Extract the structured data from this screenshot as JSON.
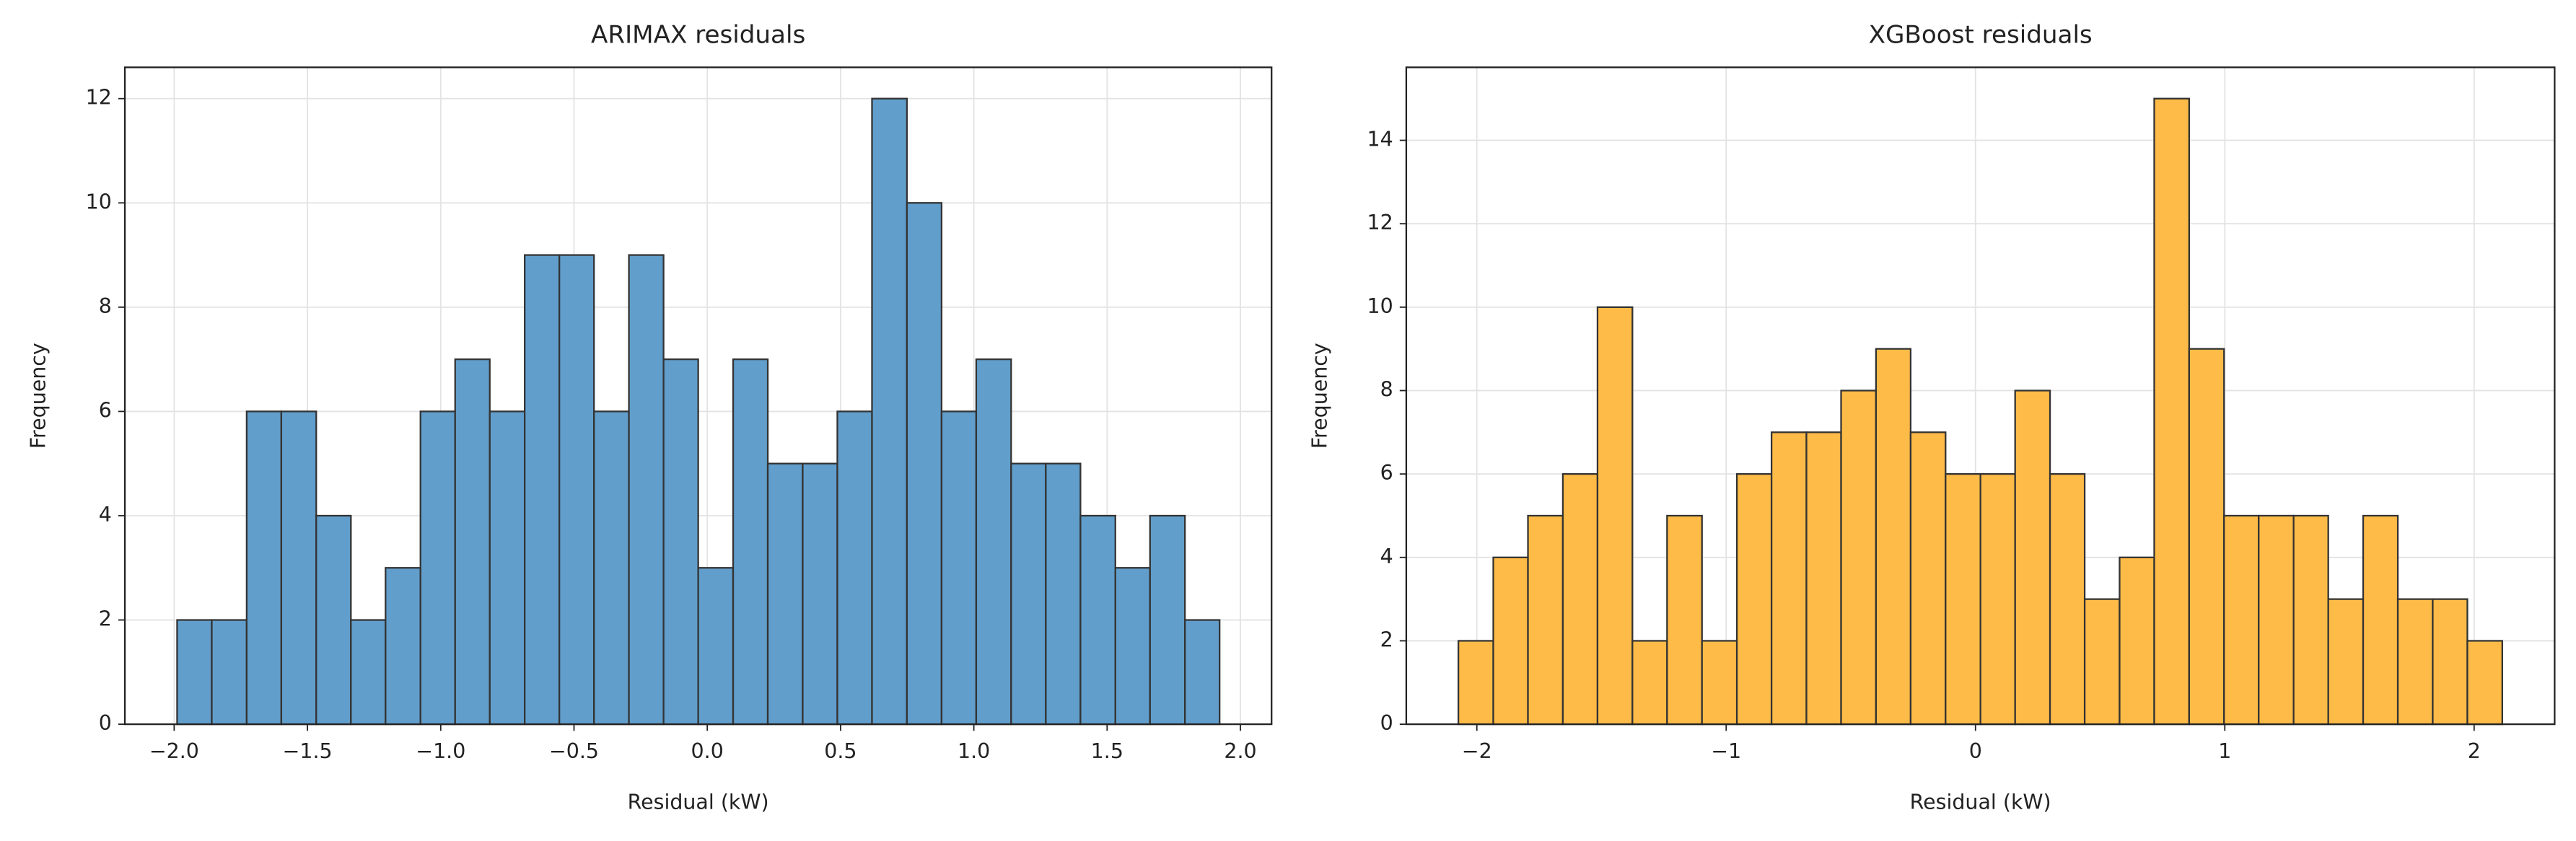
{
  "chart_data": [
    {
      "type": "histogram",
      "title": "ARIMAX residuals",
      "x_label": "Residual (kW)",
      "y_label": "Frequency",
      "color": "#619ecb",
      "edgecolor": "#333333",
      "grid": true,
      "bins": [
        -1.989,
        -1.859,
        -1.728,
        -1.598,
        -1.467,
        -1.337,
        -1.207,
        -1.076,
        -0.946,
        -0.816,
        -0.685,
        -0.555,
        -0.425,
        -0.294,
        -0.164,
        -0.034,
        0.097,
        0.227,
        0.358,
        0.488,
        0.618,
        0.749,
        0.879,
        1.009,
        1.14,
        1.27,
        1.4,
        1.531,
        1.661,
        1.792,
        1.922
      ],
      "values": [
        2,
        2,
        6,
        6,
        4,
        2,
        3,
        6,
        7,
        6,
        9,
        9,
        6,
        9,
        7,
        3,
        7,
        5,
        5,
        6,
        12,
        10,
        6,
        7,
        5,
        5,
        4,
        3,
        4,
        2
      ],
      "xlim": [
        -2.185,
        2.117
      ],
      "ylim": [
        0,
        12.6
      ],
      "xticks": [
        {
          "value": -2,
          "label": "−2.0"
        },
        {
          "value": -1.5,
          "label": "−1.5"
        },
        {
          "value": -1,
          "label": "−1.0"
        },
        {
          "value": -0.5,
          "label": "−0.5"
        },
        {
          "value": 0,
          "label": "0.0"
        },
        0.5,
        {
          "value": 1,
          "label": "1.0"
        },
        1.5,
        {
          "value": 2,
          "label": "2.0"
        }
      ],
      "yticks": [
        0,
        2,
        4,
        6,
        8,
        10,
        12
      ]
    },
    {
      "type": "histogram",
      "title": "XGBoost residuals",
      "x_label": "Residual (kW)",
      "y_label": "Frequency",
      "color": "#ffbb47",
      "edgecolor": "#333333",
      "grid": true,
      "bins": [
        -2.074,
        -1.934,
        -1.795,
        -1.655,
        -1.516,
        -1.376,
        -1.237,
        -1.097,
        -0.957,
        -0.818,
        -0.678,
        -0.539,
        -0.399,
        -0.26,
        -0.12,
        0.02,
        0.159,
        0.299,
        0.438,
        0.578,
        0.717,
        0.857,
        0.997,
        1.136,
        1.276,
        1.415,
        1.555,
        1.694,
        1.834,
        1.973,
        2.113
      ],
      "values": [
        2,
        4,
        5,
        6,
        10,
        2,
        5,
        2,
        6,
        7,
        7,
        8,
        9,
        7,
        6,
        6,
        8,
        6,
        3,
        4,
        15,
        9,
        5,
        5,
        5,
        3,
        5,
        3,
        3,
        2
      ],
      "xlim": [
        -2.283,
        2.323
      ],
      "ylim": [
        0,
        15.75
      ],
      "xticks": [
        {
          "value": -2,
          "label": "−2"
        },
        {
          "value": -1,
          "label": "−1"
        },
        0,
        1,
        2
      ],
      "yticks": [
        0,
        2,
        4,
        6,
        8,
        10,
        12,
        14
      ]
    }
  ]
}
